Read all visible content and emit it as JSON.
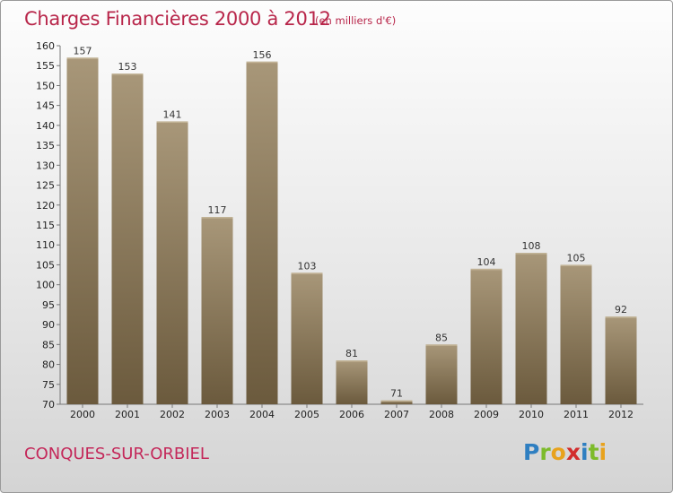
{
  "title": "Charges Financières 2000 à 2012",
  "subtitle": "(en milliers d'€)",
  "commune": "CONQUES-SUR-ORBIEL",
  "logo": {
    "letters": [
      "P",
      "r",
      "o",
      "x",
      "i",
      "t",
      "i"
    ],
    "colors": [
      "#2f7fc1",
      "#7dbb2b",
      "#e8a21d",
      "#d22d2d",
      "#2f7fc1",
      "#7dbb2b",
      "#e8a21d"
    ]
  },
  "colors": {
    "title": "#b8264a",
    "bar_top": "#a89779",
    "bar_bottom": "#6b5a3d"
  },
  "chart_data": {
    "type": "bar",
    "title": "Charges Financières 2000 à 2012",
    "subtitle": "(en milliers d'€)",
    "categories": [
      "2000",
      "2001",
      "2002",
      "2003",
      "2004",
      "2005",
      "2006",
      "2007",
      "2008",
      "2009",
      "2010",
      "2011",
      "2012"
    ],
    "values": [
      157,
      153,
      141,
      117,
      156,
      103,
      81,
      71,
      85,
      104,
      108,
      105,
      92
    ],
    "ylim": [
      70,
      160
    ],
    "yticks": [
      70,
      75,
      80,
      85,
      90,
      95,
      100,
      105,
      110,
      115,
      120,
      125,
      130,
      135,
      140,
      145,
      150,
      155,
      160
    ],
    "grid": false,
    "xlabel": "",
    "ylabel": ""
  }
}
